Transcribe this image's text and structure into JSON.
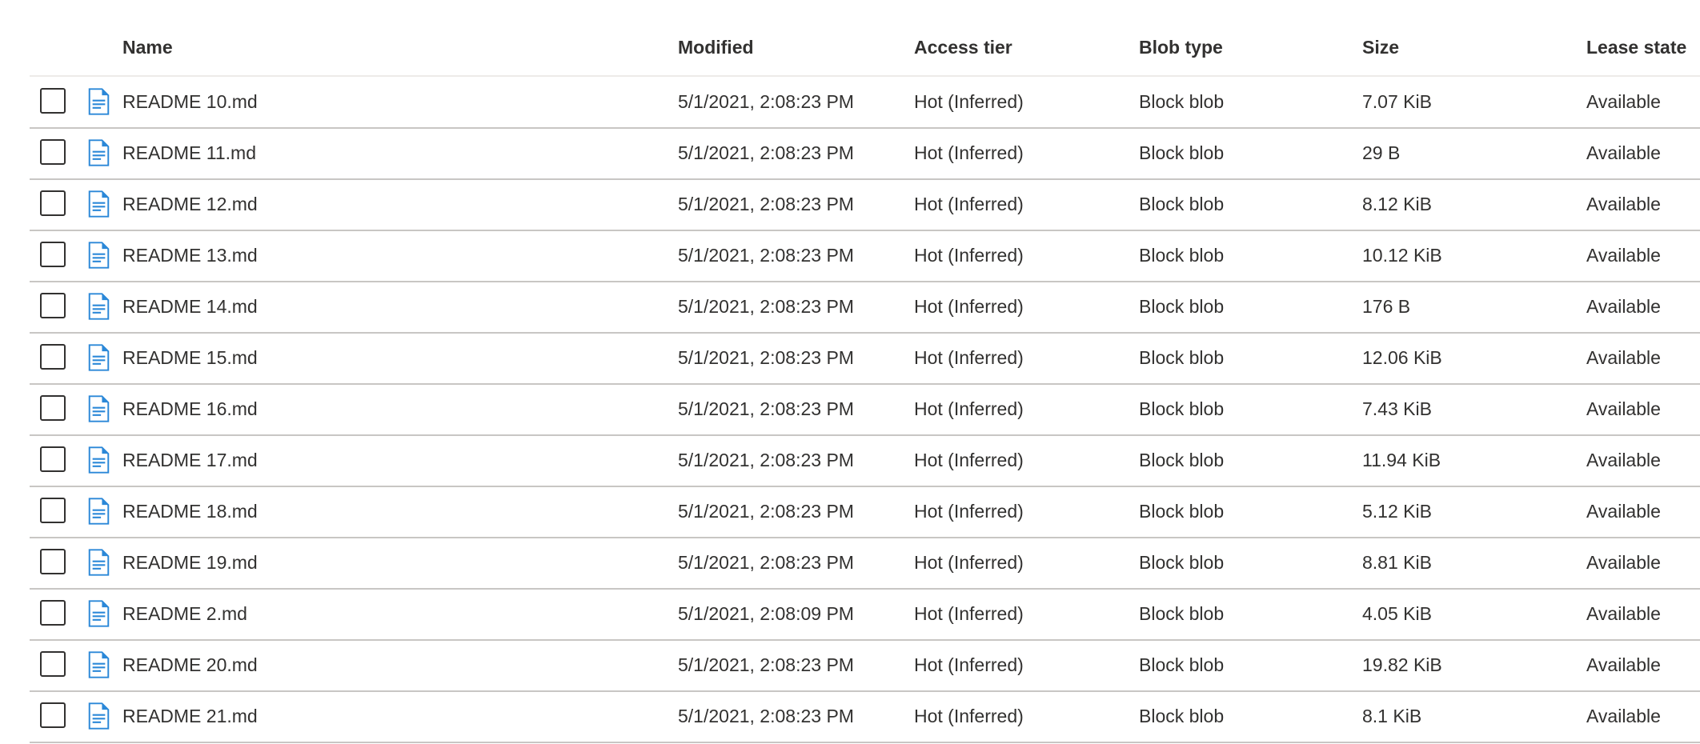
{
  "columns": {
    "name": "Name",
    "modified": "Modified",
    "access_tier": "Access tier",
    "blob_type": "Blob type",
    "size": "Size",
    "lease_state": "Lease state"
  },
  "icon_color": "#2b88d8",
  "rows": [
    {
      "name": "README 10.md",
      "modified": "5/1/2021, 2:08:23 PM",
      "access_tier": "Hot (Inferred)",
      "blob_type": "Block blob",
      "size": "7.07 KiB",
      "lease_state": "Available"
    },
    {
      "name": "README 11.md",
      "modified": "5/1/2021, 2:08:23 PM",
      "access_tier": "Hot (Inferred)",
      "blob_type": "Block blob",
      "size": "29 B",
      "lease_state": "Available"
    },
    {
      "name": "README 12.md",
      "modified": "5/1/2021, 2:08:23 PM",
      "access_tier": "Hot (Inferred)",
      "blob_type": "Block blob",
      "size": "8.12 KiB",
      "lease_state": "Available"
    },
    {
      "name": "README 13.md",
      "modified": "5/1/2021, 2:08:23 PM",
      "access_tier": "Hot (Inferred)",
      "blob_type": "Block blob",
      "size": "10.12 KiB",
      "lease_state": "Available"
    },
    {
      "name": "README 14.md",
      "modified": "5/1/2021, 2:08:23 PM",
      "access_tier": "Hot (Inferred)",
      "blob_type": "Block blob",
      "size": "176 B",
      "lease_state": "Available"
    },
    {
      "name": "README 15.md",
      "modified": "5/1/2021, 2:08:23 PM",
      "access_tier": "Hot (Inferred)",
      "blob_type": "Block blob",
      "size": "12.06 KiB",
      "lease_state": "Available"
    },
    {
      "name": "README 16.md",
      "modified": "5/1/2021, 2:08:23 PM",
      "access_tier": "Hot (Inferred)",
      "blob_type": "Block blob",
      "size": "7.43 KiB",
      "lease_state": "Available"
    },
    {
      "name": "README 17.md",
      "modified": "5/1/2021, 2:08:23 PM",
      "access_tier": "Hot (Inferred)",
      "blob_type": "Block blob",
      "size": "11.94 KiB",
      "lease_state": "Available"
    },
    {
      "name": "README 18.md",
      "modified": "5/1/2021, 2:08:23 PM",
      "access_tier": "Hot (Inferred)",
      "blob_type": "Block blob",
      "size": "5.12 KiB",
      "lease_state": "Available"
    },
    {
      "name": "README 19.md",
      "modified": "5/1/2021, 2:08:23 PM",
      "access_tier": "Hot (Inferred)",
      "blob_type": "Block blob",
      "size": "8.81 KiB",
      "lease_state": "Available"
    },
    {
      "name": "README 2.md",
      "modified": "5/1/2021, 2:08:09 PM",
      "access_tier": "Hot (Inferred)",
      "blob_type": "Block blob",
      "size": "4.05 KiB",
      "lease_state": "Available"
    },
    {
      "name": "README 20.md",
      "modified": "5/1/2021, 2:08:23 PM",
      "access_tier": "Hot (Inferred)",
      "blob_type": "Block blob",
      "size": "19.82 KiB",
      "lease_state": "Available"
    },
    {
      "name": "README 21.md",
      "modified": "5/1/2021, 2:08:23 PM",
      "access_tier": "Hot (Inferred)",
      "blob_type": "Block blob",
      "size": "8.1 KiB",
      "lease_state": "Available"
    }
  ]
}
